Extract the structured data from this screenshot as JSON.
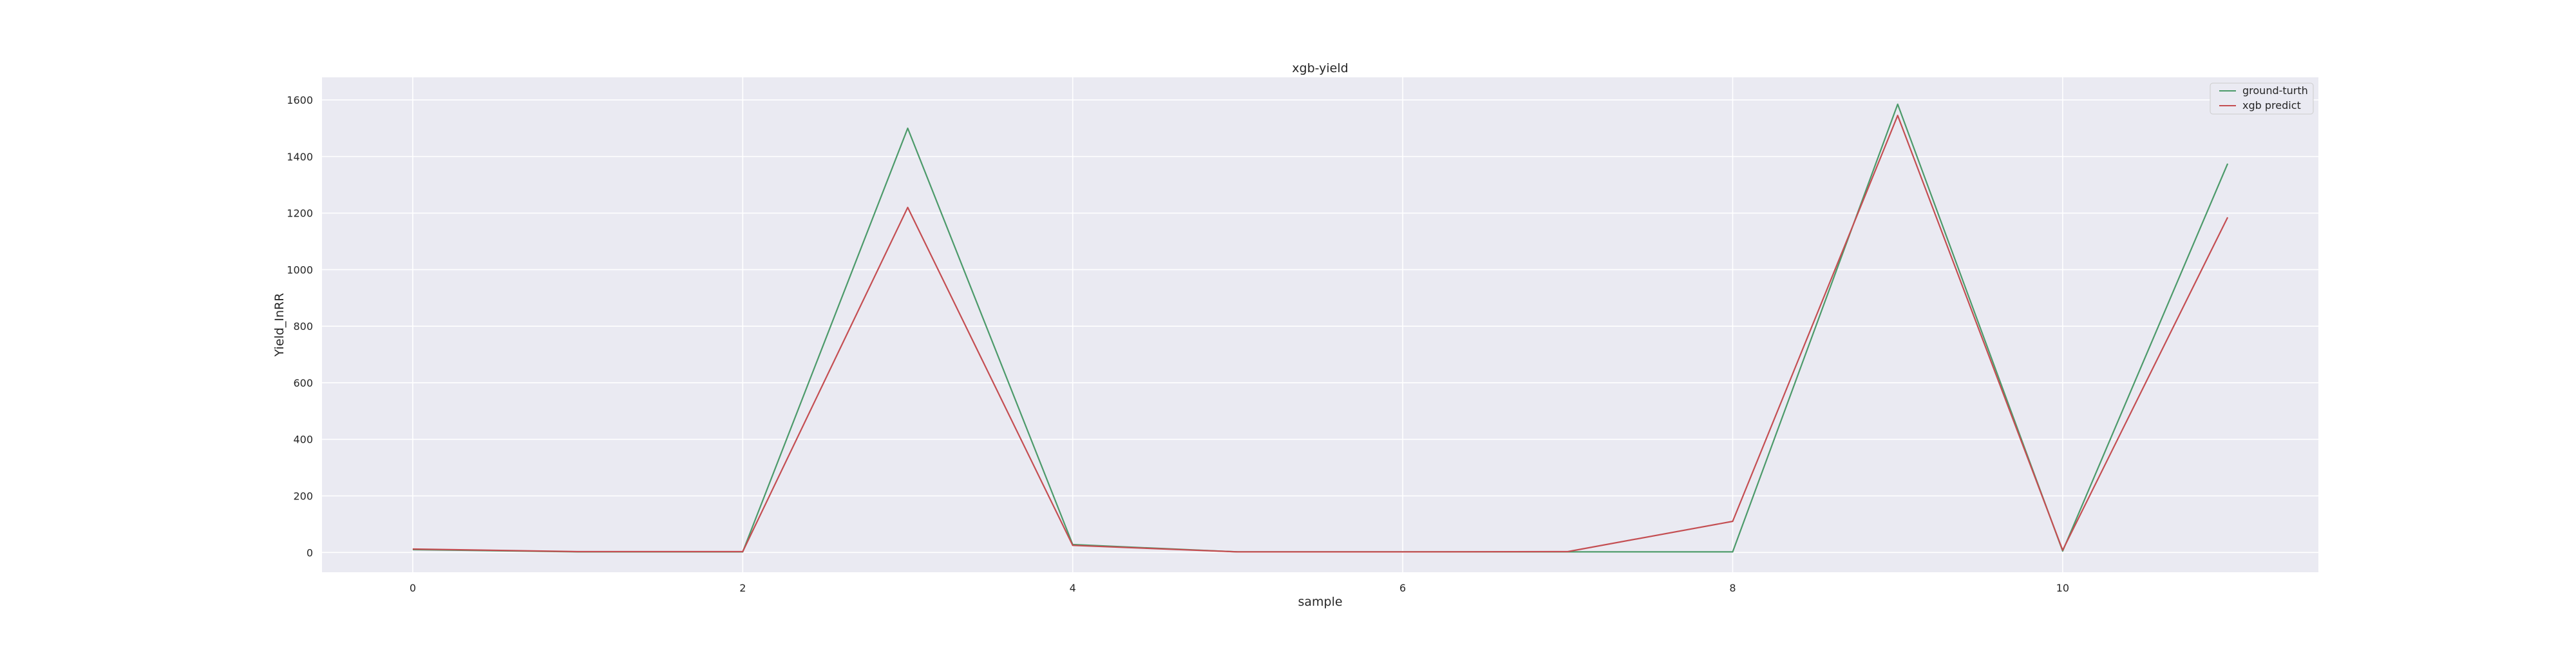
{
  "chart_data": {
    "type": "line",
    "title": "xgb-yield",
    "xlabel": "sample",
    "ylabel": "Yield_InRR",
    "x": [
      0,
      1,
      2,
      3,
      4,
      5,
      6,
      7,
      8,
      9,
      10,
      11
    ],
    "series": [
      {
        "name": "ground-turth",
        "color": "#4c9a6a",
        "values": [
          10,
          2,
          2,
          1500,
          28,
          2,
          2,
          2,
          2,
          1585,
          5,
          1375
        ]
      },
      {
        "name": "xgb predict",
        "color": "#c44e52",
        "values": [
          12,
          3,
          3,
          1220,
          25,
          2,
          2,
          3,
          110,
          1545,
          8,
          1185
        ]
      }
    ],
    "xlim": [
      -0.55,
      11.55
    ],
    "ylim": [
      -70,
      1680
    ],
    "xticks": [
      0,
      2,
      4,
      6,
      8,
      10
    ],
    "yticks": [
      0,
      200,
      400,
      600,
      800,
      1000,
      1200,
      1400,
      1600
    ],
    "grid": true,
    "legend_position": "top-right",
    "background": "#eaeaf2",
    "grid_color": "#ffffff"
  }
}
